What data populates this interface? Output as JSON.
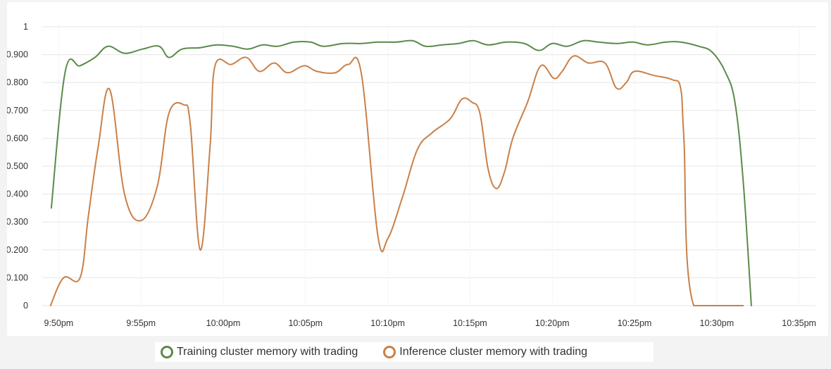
{
  "chart_data": {
    "type": "line",
    "title": "",
    "xlabel": "",
    "ylabel": "",
    "ylim": [
      0,
      1
    ],
    "y_ticks": [
      "0",
      "0.100",
      "0.200",
      "0.300",
      "0.400",
      "0.500",
      "0.600",
      "0.700",
      "0.800",
      "0.900",
      "1"
    ],
    "x_range_minutes": [
      0,
      47
    ],
    "x_ticks": [
      {
        "label": "9:50pm",
        "t": 1
      },
      {
        "label": "9:55pm",
        "t": 6
      },
      {
        "label": "10:00pm",
        "t": 11
      },
      {
        "label": "10:05pm",
        "t": 16
      },
      {
        "label": "10:10pm",
        "t": 21
      },
      {
        "label": "10:15pm",
        "t": 26
      },
      {
        "label": "10:20pm",
        "t": 31
      },
      {
        "label": "10:25pm",
        "t": 36
      },
      {
        "label": "10:30pm",
        "t": 41
      },
      {
        "label": "10:35pm",
        "t": 46
      }
    ],
    "grid": true,
    "legend_position": "bottom",
    "series": [
      {
        "name": "Training cluster memory with trading",
        "color": "#5a8a4a",
        "points": [
          [
            0.55,
            0.35
          ],
          [
            1.4,
            0.84
          ],
          [
            2.3,
            0.86
          ],
          [
            3.2,
            0.89
          ],
          [
            4.0,
            0.93
          ],
          [
            5.0,
            0.905
          ],
          [
            6.1,
            0.92
          ],
          [
            7.1,
            0.93
          ],
          [
            7.7,
            0.89
          ],
          [
            8.5,
            0.92
          ],
          [
            9.6,
            0.925
          ],
          [
            10.6,
            0.935
          ],
          [
            11.6,
            0.93
          ],
          [
            12.5,
            0.92
          ],
          [
            13.4,
            0.935
          ],
          [
            14.3,
            0.93
          ],
          [
            15.3,
            0.945
          ],
          [
            16.3,
            0.945
          ],
          [
            17.1,
            0.93
          ],
          [
            18.3,
            0.94
          ],
          [
            19.4,
            0.94
          ],
          [
            20.4,
            0.945
          ],
          [
            21.5,
            0.945
          ],
          [
            22.5,
            0.95
          ],
          [
            23.3,
            0.93
          ],
          [
            24.3,
            0.935
          ],
          [
            25.3,
            0.94
          ],
          [
            26.2,
            0.95
          ],
          [
            27.1,
            0.935
          ],
          [
            28.2,
            0.945
          ],
          [
            29.3,
            0.94
          ],
          [
            30.2,
            0.915
          ],
          [
            31.0,
            0.94
          ],
          [
            31.9,
            0.93
          ],
          [
            32.9,
            0.95
          ],
          [
            33.8,
            0.945
          ],
          [
            34.9,
            0.94
          ],
          [
            35.9,
            0.945
          ],
          [
            36.8,
            0.935
          ],
          [
            37.9,
            0.945
          ],
          [
            38.8,
            0.945
          ],
          [
            39.9,
            0.93
          ],
          [
            40.7,
            0.91
          ],
          [
            41.5,
            0.84
          ],
          [
            42.1,
            0.73
          ],
          [
            42.6,
            0.45
          ],
          [
            43.1,
            0.0
          ]
        ]
      },
      {
        "name": "Inference cluster memory with trading",
        "color": "#c98048",
        "points": [
          [
            0.5,
            0.0
          ],
          [
            1.3,
            0.1
          ],
          [
            2.3,
            0.1
          ],
          [
            2.8,
            0.32
          ],
          [
            3.4,
            0.57
          ],
          [
            4.1,
            0.775
          ],
          [
            5.0,
            0.4
          ],
          [
            6.0,
            0.305
          ],
          [
            7.0,
            0.43
          ],
          [
            7.7,
            0.69
          ],
          [
            8.6,
            0.72
          ],
          [
            9.0,
            0.65
          ],
          [
            9.6,
            0.2
          ],
          [
            10.2,
            0.57
          ],
          [
            10.5,
            0.86
          ],
          [
            11.5,
            0.865
          ],
          [
            12.4,
            0.89
          ],
          [
            13.2,
            0.84
          ],
          [
            14.1,
            0.87
          ],
          [
            14.9,
            0.835
          ],
          [
            15.9,
            0.86
          ],
          [
            16.7,
            0.84
          ],
          [
            17.8,
            0.835
          ],
          [
            18.6,
            0.865
          ],
          [
            19.4,
            0.83
          ],
          [
            20.4,
            0.25
          ],
          [
            21.0,
            0.24
          ],
          [
            21.9,
            0.39
          ],
          [
            22.8,
            0.56
          ],
          [
            23.7,
            0.62
          ],
          [
            24.8,
            0.67
          ],
          [
            25.5,
            0.74
          ],
          [
            26.1,
            0.73
          ],
          [
            26.6,
            0.69
          ],
          [
            27.1,
            0.49
          ],
          [
            27.6,
            0.42
          ],
          [
            28.1,
            0.48
          ],
          [
            28.6,
            0.6
          ],
          [
            29.5,
            0.73
          ],
          [
            30.3,
            0.86
          ],
          [
            31.1,
            0.815
          ],
          [
            31.6,
            0.84
          ],
          [
            32.3,
            0.895
          ],
          [
            33.2,
            0.87
          ],
          [
            34.2,
            0.87
          ],
          [
            34.9,
            0.78
          ],
          [
            35.5,
            0.8
          ],
          [
            36.0,
            0.84
          ],
          [
            37.2,
            0.825
          ],
          [
            38.3,
            0.81
          ],
          [
            38.8,
            0.78
          ],
          [
            39.0,
            0.6
          ],
          [
            39.6,
            0.0
          ],
          [
            42.6,
            0.0
          ]
        ]
      }
    ]
  }
}
